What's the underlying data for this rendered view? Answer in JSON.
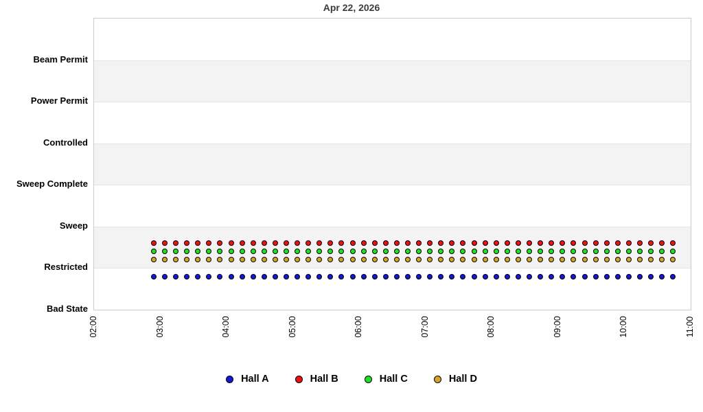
{
  "chart_data": {
    "type": "scatter",
    "title": "Apr 22, 2026",
    "x_axis": {
      "tick_labels": [
        "02:00",
        "03:00",
        "04:00",
        "05:00",
        "06:00",
        "07:00",
        "08:00",
        "09:00",
        "10:00",
        "11:00"
      ],
      "range_minutes": [
        120,
        660
      ],
      "tick_interval_minutes": 60
    },
    "y_axis": {
      "categories_top_to_bottom": [
        "Beam Permit",
        "Power Permit",
        "Controlled",
        "Sweep Complete",
        "Sweep",
        "Restricted",
        "Bad State"
      ],
      "state_values": {
        "Bad State": 0,
        "Restricted": 1,
        "Sweep": 2,
        "Sweep Complete": 3,
        "Controlled": 4,
        "Power Permit": 5,
        "Beam Permit": 6
      },
      "axis_top_value": 7,
      "grid": "alternating-bands"
    },
    "sampling": {
      "first_point": "02:54",
      "last_point": "10:44",
      "interval_minutes": 10,
      "points_per_series": 48
    },
    "series": [
      {
        "name": "Hall A",
        "color": "#1616d8",
        "state": "Bad State",
        "offset": 0.8,
        "plotted_value": 0.8
      },
      {
        "name": "Hall B",
        "color": "#ee1111",
        "state": "Restricted",
        "offset": 0.6,
        "plotted_value": 1.6
      },
      {
        "name": "Hall C",
        "color": "#22dd22",
        "state": "Restricted",
        "offset": 0.4,
        "plotted_value": 1.4
      },
      {
        "name": "Hall D",
        "color": "#d5a327",
        "state": "Restricted",
        "offset": 0.2,
        "plotted_value": 1.2
      }
    ],
    "legend": {
      "position": "bottom",
      "entries": [
        {
          "label": "Hall A",
          "color": "#1616d8"
        },
        {
          "label": "Hall B",
          "color": "#ee1111"
        },
        {
          "label": "Hall C",
          "color": "#22dd22"
        },
        {
          "label": "Hall D",
          "color": "#d5a327"
        }
      ]
    },
    "colors": {
      "band_gray": "#f3f3f3",
      "band_white": "#ffffff",
      "gridline": "#e3e3e3",
      "plot_border": "#cccccc",
      "title_text": "#3c3c3c"
    }
  }
}
